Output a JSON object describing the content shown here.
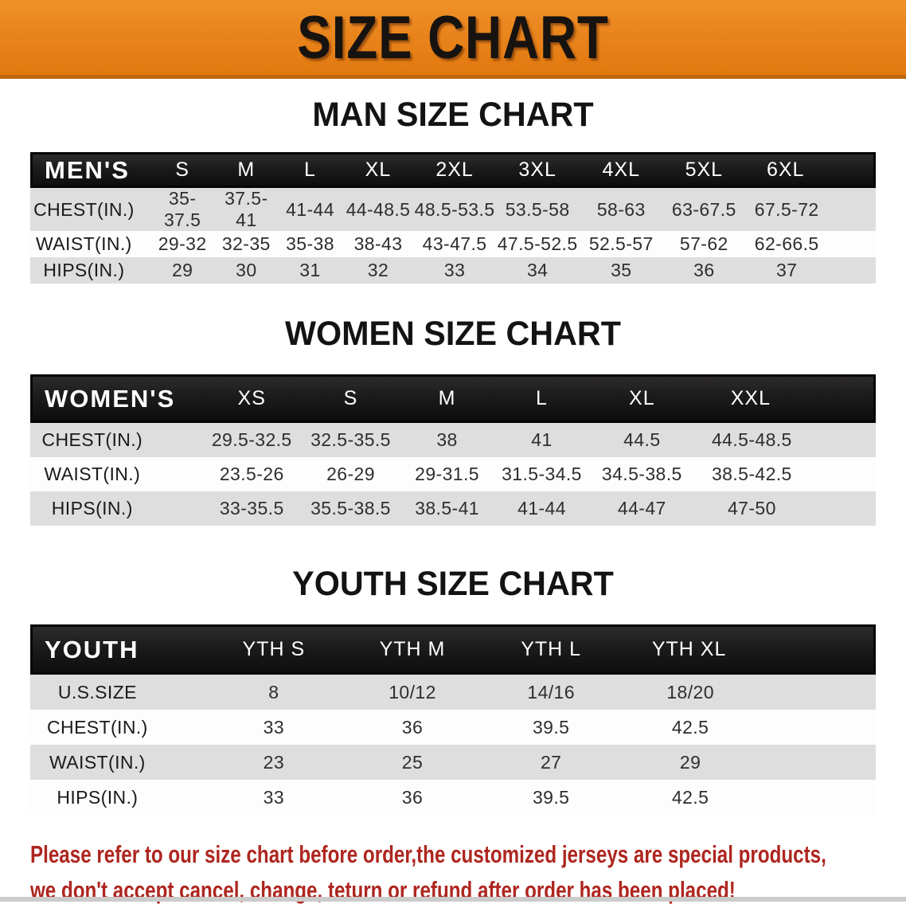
{
  "banner": {
    "title": "SIZE CHART"
  },
  "sections": [
    {
      "title": "MAN SIZE CHART"
    },
    {
      "title": "WOMEN SIZE CHART"
    },
    {
      "title": "YOUTH SIZE CHART"
    }
  ],
  "chart_data": [
    {
      "type": "table",
      "title": "MAN SIZE CHART",
      "corner_label": "MEN'S",
      "columns": [
        "S",
        "M",
        "L",
        "XL",
        "2XL",
        "3XL",
        "4XL",
        "5XL",
        "6XL"
      ],
      "rows": [
        {
          "label": "CHEST(IN.)",
          "values": [
            "35-37.5",
            "37.5-41",
            "41-44",
            "44-48.5",
            "48.5-53.5",
            "53.5-58",
            "58-63",
            "63-67.5",
            "67.5-72"
          ]
        },
        {
          "label": "WAIST(IN.)",
          "values": [
            "29-32",
            "32-35",
            "35-38",
            "38-43",
            "43-47.5",
            "47.5-52.5",
            "52.5-57",
            "57-62",
            "62-66.5"
          ]
        },
        {
          "label": "HIPS(IN.)",
          "values": [
            "29",
            "30",
            "31",
            "32",
            "33",
            "34",
            "35",
            "36",
            "37"
          ]
        }
      ]
    },
    {
      "type": "table",
      "title": "WOMEN SIZE CHART",
      "corner_label": "WOMEN'S",
      "columns": [
        "XS",
        "S",
        "M",
        "L",
        "XL",
        "XXL"
      ],
      "rows": [
        {
          "label": "CHEST(IN.)",
          "values": [
            "29.5-32.5",
            "32.5-35.5",
            "38",
            "41",
            "44.5",
            "44.5-48.5"
          ]
        },
        {
          "label": "WAIST(IN.)",
          "values": [
            "23.5-26",
            "26-29",
            "29-31.5",
            "31.5-34.5",
            "34.5-38.5",
            "38.5-42.5"
          ]
        },
        {
          "label": "HIPS(IN.)",
          "values": [
            "33-35.5",
            "35.5-38.5",
            "38.5-41",
            "41-44",
            "44-47",
            "47-50"
          ]
        }
      ]
    },
    {
      "type": "table",
      "title": "YOUTH SIZE CHART",
      "corner_label": "YOUTH",
      "columns": [
        "YTH S",
        "YTH M",
        "YTH L",
        "YTH XL"
      ],
      "rows": [
        {
          "label": "U.S.SIZE",
          "values": [
            "8",
            "10/12",
            "14/16",
            "18/20"
          ]
        },
        {
          "label": "CHEST(IN.)",
          "values": [
            "33",
            "36",
            "39.5",
            "42.5"
          ]
        },
        {
          "label": "WAIST(IN.)",
          "values": [
            "23",
            "25",
            "27",
            "29"
          ]
        },
        {
          "label": "HIPS(IN.)",
          "values": [
            "33",
            "36",
            "39.5",
            "42.5"
          ]
        }
      ]
    }
  ],
  "notice": {
    "line1": "Please refer to our size chart before order,the customized jerseys are special products,",
    "line2": "we don't accept cancel, change, teturn or refund after order has been placed!"
  },
  "colors": {
    "banner_orange": "#E8821A",
    "banner_orange_light": "#EF9127",
    "banner_orange_dark": "#E1790F",
    "banner_border": "#C0660D",
    "header_bar_black": "#1B1B1B",
    "header_text_white": "#FFFFFF",
    "row_gray": "#DEDEDE",
    "row_white": "#FDFDFD",
    "notice_red": "#AE261F"
  }
}
